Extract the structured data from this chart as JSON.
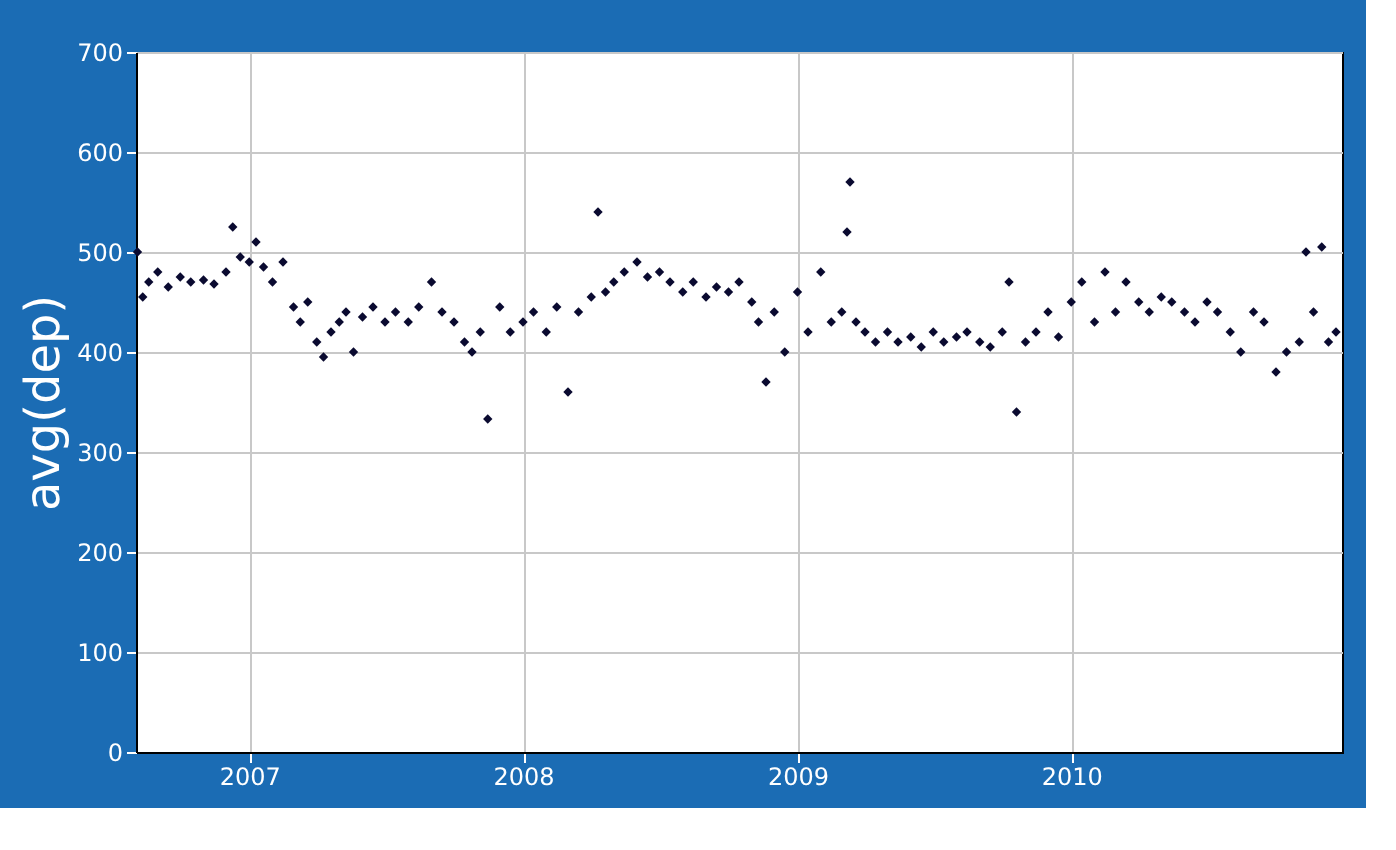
{
  "chart_data": {
    "type": "scatter",
    "ylabel": "avg(dep)",
    "x": [
      "2006-08-05",
      "2006-08-12",
      "2006-08-20",
      "2006-09-01",
      "2006-09-15",
      "2006-10-01",
      "2006-10-15",
      "2006-11-01",
      "2006-11-15",
      "2006-12-01",
      "2006-12-10",
      "2006-12-20",
      "2007-01-01",
      "2007-01-10",
      "2007-01-20",
      "2007-02-01",
      "2007-02-15",
      "2007-03-01",
      "2007-03-10",
      "2007-03-20",
      "2007-04-01",
      "2007-04-10",
      "2007-04-20",
      "2007-05-01",
      "2007-05-10",
      "2007-05-20",
      "2007-06-01",
      "2007-06-15",
      "2007-07-01",
      "2007-07-15",
      "2007-08-01",
      "2007-08-15",
      "2007-09-01",
      "2007-09-15",
      "2007-10-01",
      "2007-10-15",
      "2007-10-25",
      "2007-11-05",
      "2007-11-15",
      "2007-12-01",
      "2007-12-15",
      "2008-01-01",
      "2008-01-15",
      "2008-02-01",
      "2008-02-15",
      "2008-03-01",
      "2008-03-15",
      "2008-04-01",
      "2008-04-10",
      "2008-04-20",
      "2008-05-01",
      "2008-05-15",
      "2008-06-01",
      "2008-06-15",
      "2008-07-01",
      "2008-07-15",
      "2008-08-01",
      "2008-08-15",
      "2008-09-01",
      "2008-09-15",
      "2008-10-01",
      "2008-10-15",
      "2008-11-01",
      "2008-11-10",
      "2008-11-20",
      "2008-12-01",
      "2008-12-15",
      "2009-01-01",
      "2009-01-15",
      "2009-02-01",
      "2009-02-15",
      "2009-03-01",
      "2009-03-08",
      "2009-03-12",
      "2009-03-20",
      "2009-04-01",
      "2009-04-15",
      "2009-05-01",
      "2009-05-15",
      "2009-06-01",
      "2009-06-15",
      "2009-07-01",
      "2009-07-15",
      "2009-08-01",
      "2009-08-15",
      "2009-09-01",
      "2009-09-15",
      "2009-10-01",
      "2009-10-10",
      "2009-10-20",
      "2009-11-01",
      "2009-11-15",
      "2009-12-01",
      "2009-12-15",
      "2010-01-01",
      "2010-01-15",
      "2010-02-01",
      "2010-02-15",
      "2010-03-01",
      "2010-03-15",
      "2010-04-01",
      "2010-04-15",
      "2010-05-01",
      "2010-05-15",
      "2010-06-01",
      "2010-06-15",
      "2010-07-01",
      "2010-07-15",
      "2010-08-01",
      "2010-08-15",
      "2010-09-01",
      "2010-09-15",
      "2010-10-01",
      "2010-10-15",
      "2010-11-01",
      "2010-11-10",
      "2010-11-20",
      "2010-12-01",
      "2010-12-10",
      "2010-12-20"
    ],
    "values": [
      500,
      455,
      470,
      480,
      465,
      475,
      470,
      472,
      468,
      480,
      525,
      495,
      490,
      510,
      485,
      470,
      490,
      445,
      430,
      450,
      410,
      395,
      420,
      430,
      440,
      400,
      435,
      445,
      430,
      440,
      430,
      445,
      470,
      440,
      430,
      410,
      400,
      420,
      333,
      445,
      420,
      430,
      440,
      420,
      445,
      360,
      440,
      455,
      540,
      460,
      470,
      480,
      490,
      475,
      480,
      470,
      460,
      470,
      455,
      465,
      460,
      470,
      450,
      430,
      370,
      440,
      400,
      460,
      420,
      480,
      430,
      440,
      520,
      570,
      430,
      420,
      410,
      420,
      410,
      415,
      405,
      420,
      410,
      415,
      420,
      410,
      405,
      420,
      470,
      340,
      410,
      420,
      440,
      415,
      450,
      470,
      430,
      480,
      440,
      470,
      450,
      440,
      455,
      450,
      440,
      430,
      450,
      440,
      420,
      400,
      440,
      430,
      380,
      400,
      410,
      500,
      440,
      505,
      410,
      420
    ],
    "color": "#0a0a30",
    "marker": "diamond",
    "xlim": [
      "2006-08-03",
      "2010-12-28"
    ],
    "xticks": [
      {
        "value": "2007-01-01",
        "label": "2007"
      },
      {
        "value": "2008-01-01",
        "label": "2008"
      },
      {
        "value": "2009-01-01",
        "label": "2009"
      },
      {
        "value": "2010-01-01",
        "label": "2010"
      }
    ],
    "ylim": [
      0,
      700
    ],
    "yticks": [
      0,
      100,
      200,
      300,
      400,
      500,
      600,
      700
    ],
    "grid": true
  }
}
